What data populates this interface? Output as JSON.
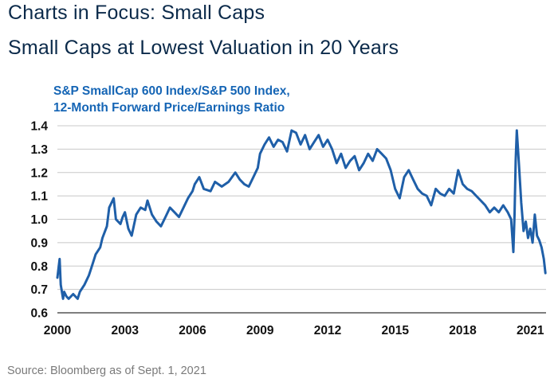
{
  "header": {
    "title_line1": "Charts in Focus: Small Caps",
    "title_line2": "Small Caps at Lowest Valuation in 20 Years"
  },
  "footer": {
    "source": "Source: Bloomberg as of Sept. 1, 2021"
  },
  "chart_data": {
    "type": "line",
    "title": "S&P SmallCap 600 Index/S&P 500 Index,",
    "subtitle": "12-Month Forward Price/Earnings Ratio",
    "xlabel": "",
    "ylabel": "",
    "xlim": [
      2000.0,
      2021.7
    ],
    "ylim": [
      0.6,
      1.4
    ],
    "x_ticks": [
      2000,
      2003,
      2006,
      2009,
      2012,
      2015,
      2018,
      2021
    ],
    "y_ticks": [
      0.6,
      0.7,
      0.8,
      0.9,
      1.0,
      1.1,
      1.2,
      1.3,
      1.4
    ],
    "y_tick_labels": [
      "0.6",
      "0.7",
      "0.8",
      "0.9",
      "1.0",
      "1.1",
      "1.2",
      "1.3",
      "1.4"
    ],
    "grid": "horizontal",
    "legend": "none",
    "line_color": "#1f5fa8",
    "series": [
      {
        "x": [
          2000.0,
          2000.1,
          2000.15,
          2000.25,
          2000.3,
          2000.4,
          2000.5,
          2000.7,
          2000.9,
          2001.0,
          2001.2,
          2001.4,
          2001.5,
          2001.7,
          2001.9,
          2002.0,
          2002.2,
          2002.3,
          2002.5,
          2002.6,
          2002.8,
          2002.9,
          2003.0,
          2003.15,
          2003.3,
          2003.5,
          2003.7,
          2003.9,
          2004.0,
          2004.2,
          2004.4,
          2004.6,
          2004.8,
          2005.0,
          2005.2,
          2005.4,
          2005.6,
          2005.8,
          2006.0,
          2006.1,
          2006.3,
          2006.5,
          2006.8,
          2007.0,
          2007.3,
          2007.6,
          2007.9,
          2008.1,
          2008.3,
          2008.5,
          2008.7,
          2008.9,
          2009.0,
          2009.2,
          2009.4,
          2009.6,
          2009.8,
          2010.0,
          2010.2,
          2010.4,
          2010.6,
          2010.8,
          2011.0,
          2011.2,
          2011.4,
          2011.6,
          2011.8,
          2012.0,
          2012.2,
          2012.4,
          2012.6,
          2012.8,
          2013.0,
          2013.2,
          2013.4,
          2013.6,
          2013.8,
          2014.0,
          2014.2,
          2014.4,
          2014.6,
          2014.8,
          2015.0,
          2015.2,
          2015.4,
          2015.6,
          2015.8,
          2016.0,
          2016.2,
          2016.4,
          2016.6,
          2016.8,
          2017.0,
          2017.2,
          2017.4,
          2017.6,
          2017.8,
          2018.0,
          2018.2,
          2018.4,
          2018.6,
          2018.8,
          2019.0,
          2019.2,
          2019.4,
          2019.6,
          2019.8,
          2020.0,
          2020.15,
          2020.25,
          2020.3,
          2020.35,
          2020.4,
          2020.5,
          2020.6,
          2020.7,
          2020.8,
          2020.9,
          2021.0,
          2021.1,
          2021.2,
          2021.3,
          2021.4,
          2021.5,
          2021.6,
          2021.67
        ],
        "y": [
          0.75,
          0.83,
          0.72,
          0.66,
          0.69,
          0.67,
          0.66,
          0.68,
          0.66,
          0.69,
          0.72,
          0.76,
          0.79,
          0.85,
          0.88,
          0.92,
          0.97,
          1.05,
          1.09,
          1.0,
          0.98,
          1.01,
          1.03,
          0.96,
          0.93,
          1.02,
          1.05,
          1.04,
          1.08,
          1.02,
          0.99,
          0.97,
          1.01,
          1.05,
          1.03,
          1.01,
          1.05,
          1.09,
          1.12,
          1.15,
          1.18,
          1.13,
          1.12,
          1.16,
          1.14,
          1.16,
          1.2,
          1.17,
          1.15,
          1.14,
          1.18,
          1.22,
          1.28,
          1.32,
          1.35,
          1.31,
          1.34,
          1.33,
          1.29,
          1.38,
          1.37,
          1.32,
          1.36,
          1.3,
          1.33,
          1.36,
          1.31,
          1.34,
          1.3,
          1.24,
          1.28,
          1.22,
          1.25,
          1.27,
          1.21,
          1.24,
          1.28,
          1.25,
          1.3,
          1.28,
          1.26,
          1.21,
          1.13,
          1.09,
          1.18,
          1.21,
          1.17,
          1.13,
          1.11,
          1.1,
          1.06,
          1.13,
          1.11,
          1.1,
          1.13,
          1.11,
          1.21,
          1.15,
          1.13,
          1.12,
          1.1,
          1.08,
          1.06,
          1.03,
          1.05,
          1.03,
          1.06,
          1.03,
          1.0,
          0.86,
          1.02,
          1.25,
          1.38,
          1.23,
          1.07,
          0.95,
          0.99,
          0.92,
          0.96,
          0.9,
          1.02,
          0.93,
          0.91,
          0.88,
          0.83,
          0.77
        ]
      }
    ]
  }
}
